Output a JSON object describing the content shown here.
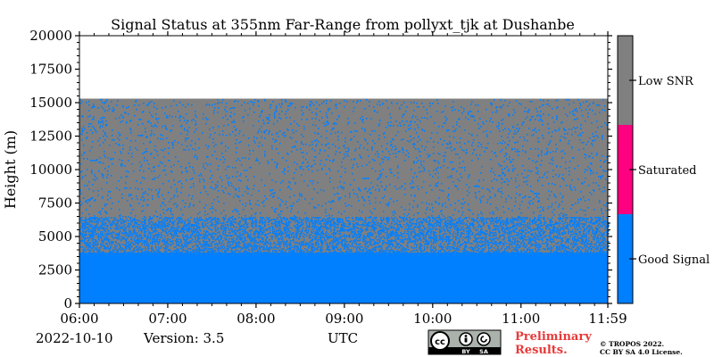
{
  "chart_data": {
    "type": "heatmap",
    "title": "Signal Status at 355nm Far-Range from pollyxt_tjk at Dushanbe",
    "ylabel": "Height (m)",
    "xlabel": "UTC",
    "ylim": [
      0,
      20000
    ],
    "y_ticks": [
      "0",
      "2500",
      "5000",
      "7500",
      "10000",
      "12500",
      "15000",
      "17500",
      "20000"
    ],
    "x_ticks": [
      "06:00",
      "07:00",
      "08:00",
      "09:00",
      "10:00",
      "11:00",
      "11:59"
    ],
    "x_range_hours": [
      6.0,
      11.983
    ],
    "data_top_height_m": 15300,
    "good_signal_top_m": 3800,
    "transition_top_m": 6500,
    "colorbar": {
      "categories": [
        "Good Signal",
        "Saturated",
        "Low SNR"
      ],
      "colors": [
        "#007fff",
        "#ff0080",
        "#808080"
      ]
    },
    "grid": false
  },
  "footer": {
    "date": "2022-10-10",
    "version": "Version: 3.5",
    "preliminary_line1": "Preliminary",
    "preliminary_line2": "Results.",
    "copyright_line1": "© TROPOS 2022.",
    "copyright_line2": "CC BY SA 4.0 License.",
    "license_badge": {
      "cc": "cc",
      "by": "BY",
      "sa": "SA"
    }
  },
  "colors": {
    "good": "#007fff",
    "saturated": "#ff0080",
    "low_snr": "#808080",
    "preliminary": "#e83a3a"
  }
}
